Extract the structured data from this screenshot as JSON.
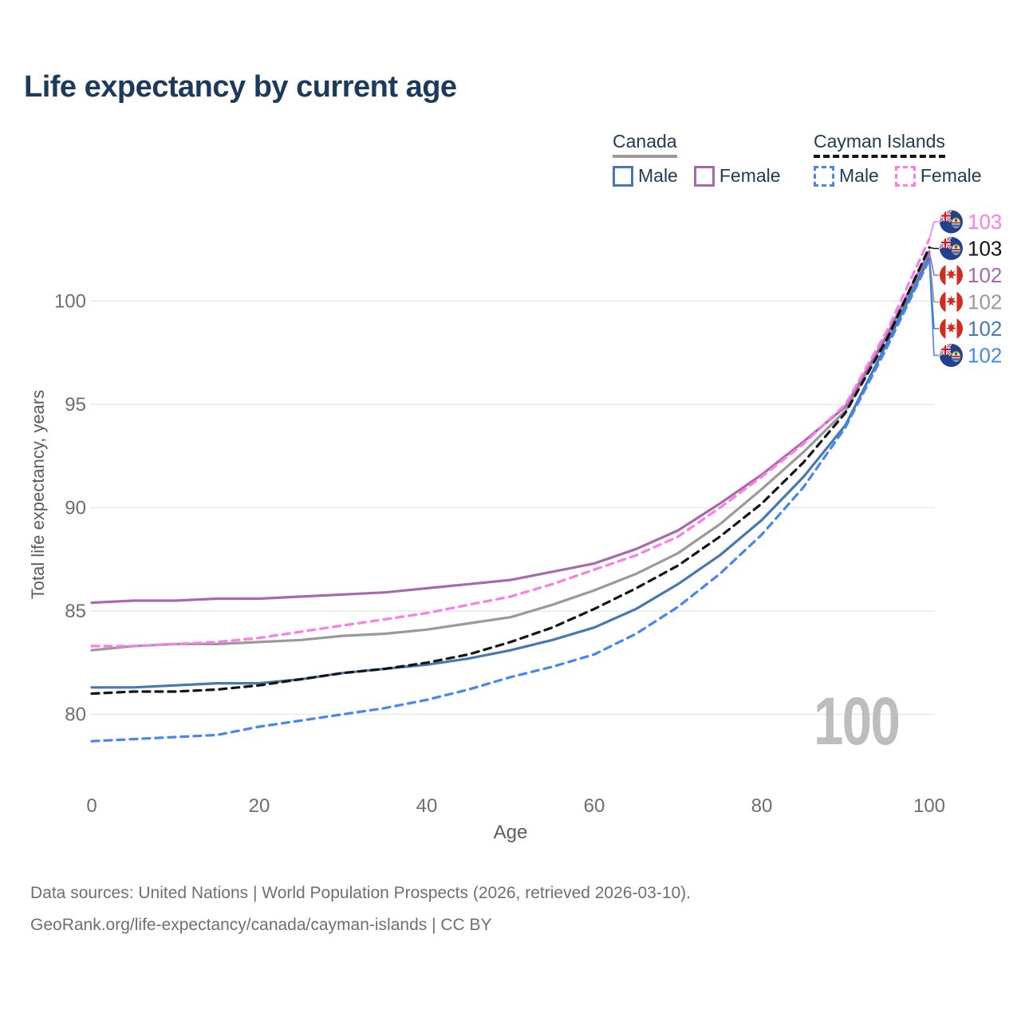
{
  "title": "Life expectancy by current age",
  "watermark": "100",
  "legend": {
    "groups": [
      {
        "name": "Canada",
        "style": "solid",
        "items": [
          {
            "label": "Male",
            "color": "#4679b2"
          },
          {
            "label": "Female",
            "color": "#a869ac"
          }
        ]
      },
      {
        "name": "Cayman Islands",
        "style": "dashed",
        "items": [
          {
            "label": "Male",
            "color": "#4585f4"
          },
          {
            "label": "Female",
            "color": "#ff7ce8"
          }
        ]
      }
    ]
  },
  "footer": {
    "line1": "Data sources: United Nations | World Population Prospects (2026, retrieved 2026-03-10).",
    "line2": "GeoRank.org/life-expectancy/canada/cayman-islands | CC BY"
  },
  "chart_data": {
    "type": "line",
    "title": "Life expectancy by current age",
    "xlabel": "Age",
    "ylabel": "Total life expectancy, years",
    "x_ticks": [
      0,
      20,
      40,
      60,
      80,
      100
    ],
    "y_ticks": [
      80,
      85,
      90,
      95,
      100
    ],
    "xlim": [
      0,
      100
    ],
    "ylim": [
      78,
      103.5
    ],
    "grid": "horizontal",
    "legend_position": "top-right",
    "ages": [
      0,
      5,
      10,
      15,
      20,
      25,
      30,
      35,
      40,
      45,
      50,
      55,
      60,
      65,
      70,
      75,
      80,
      85,
      90,
      95,
      100
    ],
    "series": [
      {
        "name": "Canada (both sexes)",
        "country": "Canada",
        "color": "#9a9a9a",
        "dash": "solid",
        "values": [
          83.1,
          83.3,
          83.4,
          83.4,
          83.5,
          83.6,
          83.8,
          83.9,
          84.1,
          84.4,
          84.7,
          85.3,
          86.0,
          86.8,
          87.8,
          89.2,
          90.9,
          92.7,
          94.7,
          98.3,
          102.2
        ]
      },
      {
        "name": "Canada Female",
        "country": "Canada",
        "color": "#a869ac",
        "dash": "solid",
        "values": [
          85.4,
          85.5,
          85.5,
          85.6,
          85.6,
          85.7,
          85.8,
          85.9,
          86.1,
          86.3,
          86.5,
          86.9,
          87.3,
          88.0,
          88.9,
          90.2,
          91.6,
          93.2,
          94.9,
          98.4,
          102.4
        ]
      },
      {
        "name": "Canada Male",
        "country": "Canada",
        "color": "#4679b2",
        "dash": "solid",
        "values": [
          81.3,
          81.3,
          81.4,
          81.5,
          81.5,
          81.7,
          82.0,
          82.2,
          82.4,
          82.7,
          83.1,
          83.6,
          84.2,
          85.1,
          86.3,
          87.7,
          89.4,
          91.5,
          94.0,
          98.0,
          102.1
        ]
      },
      {
        "name": "Cayman Islands (both sexes)",
        "country": "Cayman Islands",
        "color": "#141414",
        "dash": "dashed",
        "values": [
          81.0,
          81.1,
          81.1,
          81.2,
          81.4,
          81.7,
          82.0,
          82.2,
          82.5,
          82.9,
          83.5,
          84.2,
          85.1,
          86.1,
          87.2,
          88.6,
          90.2,
          92.2,
          94.6,
          98.2,
          102.6
        ]
      },
      {
        "name": "Cayman Islands Male",
        "country": "Cayman Islands",
        "color": "#4585f4",
        "dash": "dashed",
        "values": [
          78.7,
          78.8,
          78.9,
          79.0,
          79.4,
          79.7,
          80.0,
          80.3,
          80.7,
          81.2,
          81.8,
          82.3,
          82.9,
          83.9,
          85.2,
          86.8,
          88.7,
          91.0,
          93.9,
          97.8,
          102.0
        ]
      },
      {
        "name": "Cayman Islands Female",
        "country": "Cayman Islands",
        "color": "#ff7ce8",
        "dash": "dashed",
        "values": [
          83.3,
          83.3,
          83.4,
          83.5,
          83.7,
          84.0,
          84.3,
          84.6,
          84.9,
          85.3,
          85.7,
          86.3,
          87.0,
          87.7,
          88.6,
          90.0,
          91.5,
          93.1,
          95.0,
          98.6,
          103.0
        ]
      }
    ],
    "end_labels": [
      {
        "label": "103",
        "color": "#ff7ce8",
        "flag": "cayman-islands",
        "series": "Cayman Islands Female"
      },
      {
        "label": "103",
        "color": "#141414",
        "flag": "cayman-islands",
        "series": "Cayman Islands (both sexes)"
      },
      {
        "label": "102",
        "color": "#a869ac",
        "flag": "canada",
        "series": "Canada Female"
      },
      {
        "label": "102",
        "color": "#9a9a9a",
        "flag": "canada",
        "series": "Canada (both sexes)"
      },
      {
        "label": "102",
        "color": "#4679b2",
        "flag": "canada",
        "series": "Canada Male"
      },
      {
        "label": "102",
        "color": "#4585f4",
        "flag": "cayman-islands",
        "series": "Cayman Islands Male"
      }
    ]
  }
}
